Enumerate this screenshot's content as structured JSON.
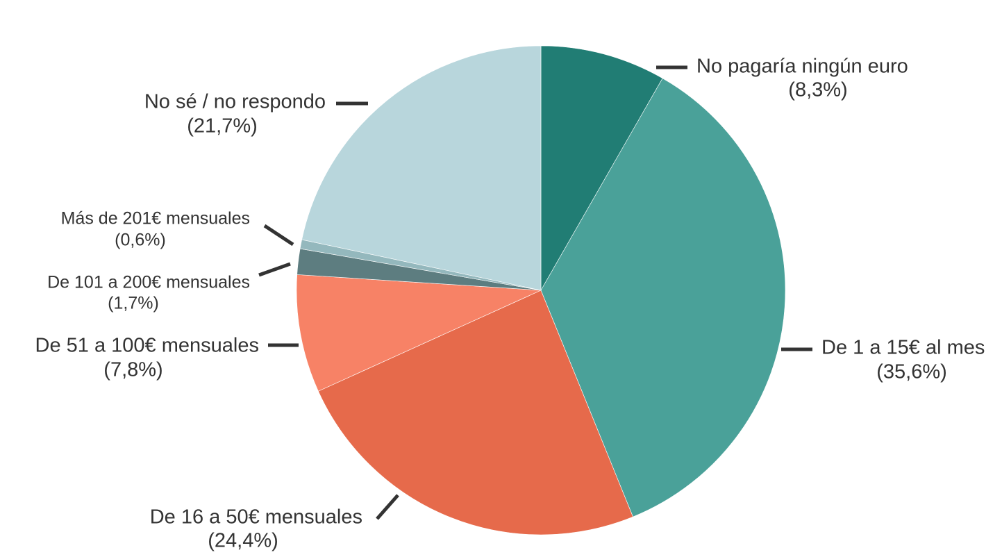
{
  "chart_data": {
    "type": "pie",
    "categories": [
      "No pagaría ningún euro",
      "De 1 a 15€ al mes",
      "De 16 a 50€ mensuales",
      "De 51 a 100€ mensuales",
      "De 101 a 200€ mensuales",
      "Más de 201€ mensuales",
      "No sé / no respondo"
    ],
    "values": [
      8.3,
      35.6,
      24.4,
      7.8,
      1.7,
      0.6,
      21.7
    ],
    "value_labels": [
      "(8,3%)",
      "(35,6%)",
      "(24,4%)",
      "(7,8%)",
      "(1,7%)",
      "(0,6%)",
      "(21,7%)"
    ],
    "colors": [
      "#217d74",
      "#4aa199",
      "#e66a4b",
      "#f78266",
      "#5d7d80",
      "#94b8bd",
      "#b8d6dc"
    ]
  }
}
